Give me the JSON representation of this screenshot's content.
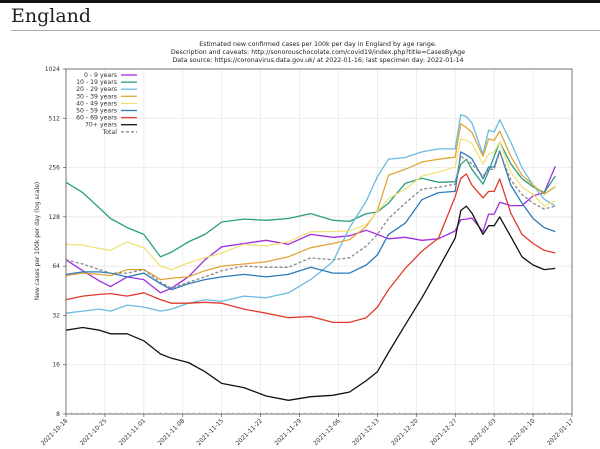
{
  "page": {
    "heading": "England"
  },
  "chart_data": {
    "type": "line",
    "title_lines": [
      "Estimated new confirmed cases per 100k per day in England by age range.",
      "Description and caveats: http://sonorouschocolate.com/covid19/index.php?title=CasesByAge",
      "Data source: https://coronavirus.data.gov.uk/ at 2022-01-16; last specimen day: 2022-01-14"
    ],
    "xlabel": "",
    "ylabel": "New cases per 100k per day (log scale)",
    "y_scale": "log2",
    "ylim": [
      8,
      1024
    ],
    "xlim": [
      "2021-10-18",
      "2022-01-17"
    ],
    "y_ticks": [
      "8",
      "16",
      "32",
      "64",
      "128",
      "256",
      "512",
      "1024"
    ],
    "x_ticks": [
      "2021-10-18",
      "2021-10-25",
      "2021-11-01",
      "2021-11-08",
      "2021-11-15",
      "2021-11-22",
      "2021-11-29",
      "2021-12-06",
      "2021-12-13",
      "2021-12-20",
      "2021-12-27",
      "2022-01-03",
      "2022-01-10",
      "2022-01-17"
    ],
    "grid": true,
    "legend_position": "top-left",
    "dates": [
      "2021-10-18",
      "2021-10-21",
      "2021-10-24",
      "2021-10-26",
      "2021-10-29",
      "2021-11-01",
      "2021-11-04",
      "2021-11-06",
      "2021-11-09",
      "2021-11-12",
      "2021-11-15",
      "2021-11-19",
      "2021-11-23",
      "2021-11-27",
      "2021-12-01",
      "2021-12-05",
      "2021-12-08",
      "2021-12-11",
      "2021-12-13",
      "2021-12-15",
      "2021-12-18",
      "2021-12-21",
      "2021-12-24",
      "2021-12-27",
      "2021-12-28",
      "2021-12-29",
      "2021-12-30",
      "2022-01-01",
      "2022-01-02",
      "2022-01-03",
      "2022-01-04",
      "2022-01-06",
      "2022-01-08",
      "2022-01-10",
      "2022-01-12",
      "2022-01-14"
    ],
    "series": [
      {
        "name": "0 - 9 years",
        "color": "#a02fe0",
        "dashed": false,
        "values": [
          70,
          60,
          52,
          48,
          55,
          53,
          44,
          47,
          55,
          70,
          84,
          88,
          92,
          87,
          100,
          96,
          98,
          106,
          100,
          94,
          96,
          92,
          94,
          105,
          123,
          124,
          126,
          104,
          133,
          133,
          157,
          150,
          150,
          172,
          180,
          261
        ]
      },
      {
        "name": "10 - 19 years",
        "color": "#2a9f7c",
        "dashed": false,
        "values": [
          208,
          180,
          145,
          125,
          110,
          100,
          73,
          78,
          90,
          100,
          119,
          124,
          122,
          125,
          134,
          122,
          120,
          134,
          137,
          155,
          205,
          220,
          208,
          210,
          268,
          288,
          250,
          203,
          243,
          300,
          367,
          270,
          219,
          195,
          180,
          227
        ]
      },
      {
        "name": "20 - 29 years",
        "color": "#6cbbe3",
        "dashed": false,
        "values": [
          33,
          34,
          35,
          34,
          37,
          36,
          34,
          35,
          38,
          40,
          39,
          42,
          41,
          44,
          53,
          68,
          110,
          160,
          225,
          288,
          295,
          319,
          333,
          333,
          537,
          524,
          480,
          309,
          433,
          422,
          501,
          367,
          255,
          200,
          164,
          149
        ]
      },
      {
        "name": "30 - 39 years",
        "color": "#e3a53a",
        "dashed": false,
        "values": [
          56,
          58,
          57,
          56,
          61,
          61,
          53,
          54,
          55,
          60,
          64,
          66,
          68,
          73,
          83,
          88,
          93,
          112,
          140,
          230,
          250,
          277,
          288,
          296,
          474,
          450,
          420,
          300,
          383,
          375,
          428,
          300,
          230,
          200,
          176,
          196
        ]
      },
      {
        "name": "40 - 49 years",
        "color": "#f0e27a",
        "dashed": false,
        "values": [
          87,
          86,
          82,
          80,
          90,
          83,
          64,
          61,
          67,
          72,
          77,
          87,
          85,
          90,
          104,
          104,
          105,
          115,
          138,
          165,
          189,
          227,
          241,
          258,
          383,
          375,
          360,
          269,
          309,
          319,
          367,
          240,
          195,
          175,
          149,
          160
        ]
      },
      {
        "name": "50 - 59 years",
        "color": "#2b7bbb",
        "dashed": false,
        "values": [
          57,
          59,
          59,
          58,
          55,
          58,
          50,
          46,
          50,
          53,
          55,
          57,
          55,
          57,
          63,
          58,
          58,
          65,
          75,
          100,
          117,
          163,
          180,
          183,
          319,
          305,
          290,
          219,
          258,
          258,
          324,
          200,
          155,
          125,
          110,
          104
        ]
      },
      {
        "name": "60 - 69 years",
        "color": "#e03b2c",
        "dashed": false,
        "values": [
          40,
          42,
          43,
          43.5,
          42,
          44,
          40,
          38,
          38,
          38.5,
          38,
          35,
          33,
          31,
          31.5,
          29,
          29,
          31,
          36,
          46,
          62,
          79,
          95,
          170,
          220,
          234,
          200,
          167,
          183,
          183,
          218,
          135,
          100,
          88,
          80,
          77
        ]
      },
      {
        "name": "70+ years",
        "color": "#111111",
        "dashed": false,
        "values": [
          26,
          27,
          26,
          24.7,
          24.7,
          22.4,
          18.6,
          17.5,
          16.5,
          14.5,
          12.3,
          11.6,
          10.3,
          9.7,
          10.2,
          10.4,
          10.9,
          12.8,
          14.5,
          19,
          28,
          41,
          62,
          95,
          140,
          149,
          135,
          100,
          113,
          113,
          128,
          97,
          73,
          65,
          61,
          62
        ]
      },
      {
        "name": "Total",
        "color": "#8a8a8a",
        "dashed": true,
        "values": [
          70,
          66,
          61,
          58,
          58,
          61,
          51,
          47,
          51,
          55,
          60,
          64,
          63,
          63,
          72,
          70,
          72,
          85,
          100,
          125,
          155,
          189,
          194,
          203,
          300,
          285,
          270,
          227,
          250,
          250,
          319,
          215,
          175,
          155,
          143,
          149
        ]
      }
    ]
  }
}
